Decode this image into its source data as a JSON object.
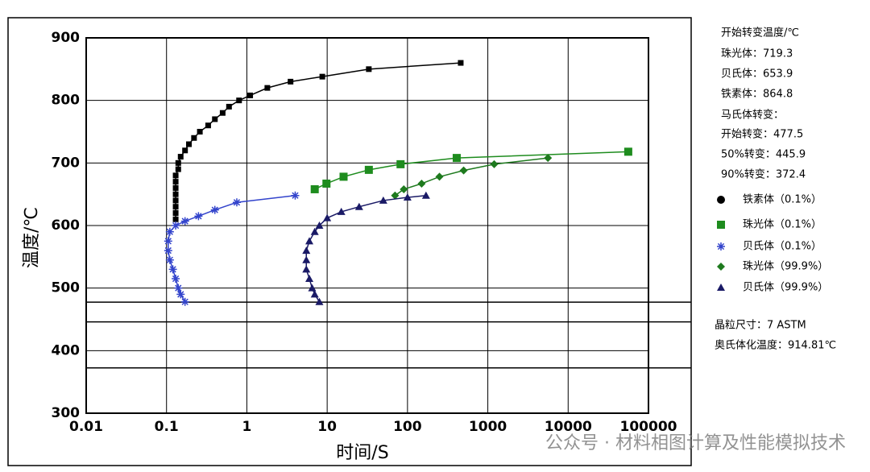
{
  "chart_data": {
    "type": "scatter",
    "xscale": "log",
    "xlabel": "时间/S",
    "ylabel": "温度/℃",
    "xlim": [
      0.01,
      100000
    ],
    "ylim": [
      300,
      900
    ],
    "xticks": [
      0.01,
      0.1,
      1,
      10,
      100,
      1000,
      10000,
      100000
    ],
    "yticks": [
      300,
      400,
      500,
      600,
      700,
      800,
      900
    ],
    "grid": true,
    "hlines": [
      477.5,
      445.9,
      372.4
    ],
    "series": [
      {
        "name": "铁素体（0.1%）",
        "color": "#000000",
        "marker": "square",
        "x": [
          0.13,
          0.13,
          0.13,
          0.13,
          0.13,
          0.13,
          0.13,
          0.13,
          0.14,
          0.14,
          0.15,
          0.17,
          0.19,
          0.22,
          0.26,
          0.33,
          0.4,
          0.5,
          0.6,
          0.8,
          1.1,
          1.8,
          3.5,
          8.7,
          33,
          460
        ],
        "values": [
          610,
          620,
          630,
          640,
          650,
          660,
          670,
          680,
          690,
          700,
          710,
          720,
          730,
          740,
          750,
          760,
          770,
          780,
          790,
          800,
          808,
          820,
          830,
          838,
          850,
          860
        ]
      },
      {
        "name": "珠光体（0.1%）",
        "color": "#1e8c1e",
        "marker": "bigsquare",
        "x": [
          7,
          9.8,
          16,
          33,
          82,
          410,
          56000
        ],
        "values": [
          658,
          667,
          678,
          689,
          698,
          708,
          718
        ]
      },
      {
        "name": "贝氏体（0.1%）",
        "color": "#3344cc",
        "marker": "star",
        "x": [
          0.17,
          0.15,
          0.14,
          0.13,
          0.12,
          0.11,
          0.105,
          0.105,
          0.11,
          0.13,
          0.17,
          0.25,
          0.4,
          0.75,
          4
        ],
        "values": [
          478,
          490,
          500,
          515,
          530,
          545,
          560,
          575,
          590,
          600,
          607,
          615,
          625,
          637,
          648
        ]
      },
      {
        "name": "珠光体（99.9%）",
        "color": "#1e7a1e",
        "marker": "diamond",
        "x": [
          70,
          90,
          150,
          250,
          500,
          1200,
          5600
        ],
        "values": [
          648,
          658,
          667,
          678,
          688,
          698,
          708
        ]
      },
      {
        "name": "贝氏体（99.9%）",
        "color": "#1a1a66",
        "marker": "triangle",
        "x": [
          8,
          7,
          6.5,
          6,
          5.5,
          5.5,
          5.5,
          6,
          7,
          8,
          10,
          15,
          25,
          50,
          100,
          170
        ],
        "values": [
          478,
          490,
          500,
          515,
          530,
          545,
          560,
          575,
          590,
          600,
          612,
          622,
          630,
          640,
          645,
          648
        ]
      }
    ]
  },
  "panel": {
    "info": [
      "开始转变温度/℃",
      "珠光体：719.3",
      "贝氏体：653.9",
      "铁素体：864.8",
      "马氏体转变：",
      "开始转变：477.5",
      "50%转变：445.9",
      "90%转变：372.4"
    ],
    "footer": [
      "晶粒尺寸：7 ASTM",
      "奥氏体化温度：914.81℃"
    ]
  },
  "watermark": "公众号 · 材料相图计算及性能模拟技术"
}
